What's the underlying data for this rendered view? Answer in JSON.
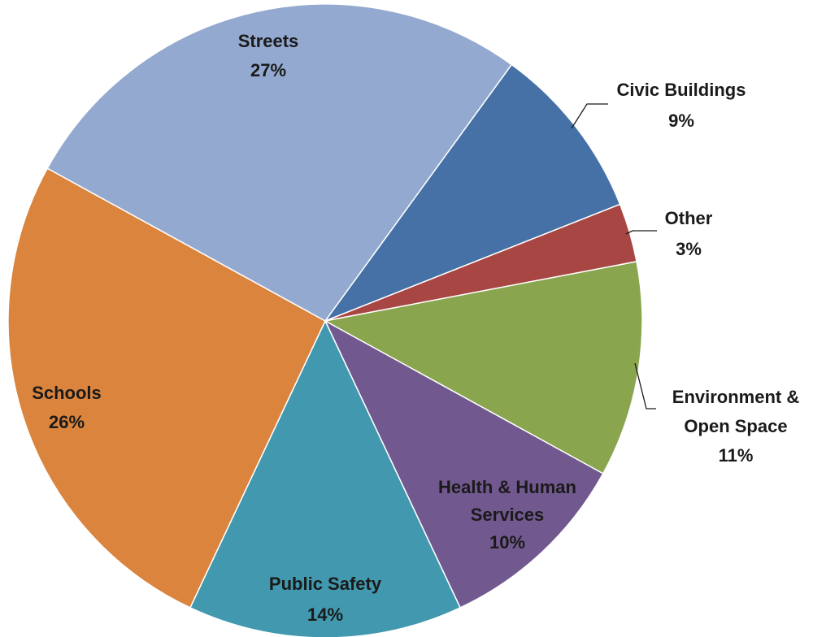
{
  "chart_data": {
    "type": "pie",
    "title": "",
    "start_angle_deg": 36,
    "direction": "clockwise",
    "legend": "none",
    "slices": [
      {
        "label_lines": [
          "Civic Buildings"
        ],
        "value": 9,
        "value_label": "9%",
        "color": "#4571A7"
      },
      {
        "label_lines": [
          "Other"
        ],
        "value": 3,
        "value_label": "3%",
        "color": "#A84644"
      },
      {
        "label_lines": [
          "Environment &",
          "Open Space"
        ],
        "value": 11,
        "value_label": "11%",
        "color": "#89A54E"
      },
      {
        "label_lines": [
          "Health & Human",
          "Services"
        ],
        "value": 10,
        "value_label": "10%",
        "color": "#71588F"
      },
      {
        "label_lines": [
          "Public Safety"
        ],
        "value": 14,
        "value_label": "14%",
        "color": "#4198AF"
      },
      {
        "label_lines": [
          "Schools"
        ],
        "value": 26,
        "value_label": "26%",
        "color": "#DB843D"
      },
      {
        "label_lines": [
          "Streets"
        ],
        "value": 27,
        "value_label": "27%",
        "color": "#93A9CF"
      }
    ]
  }
}
